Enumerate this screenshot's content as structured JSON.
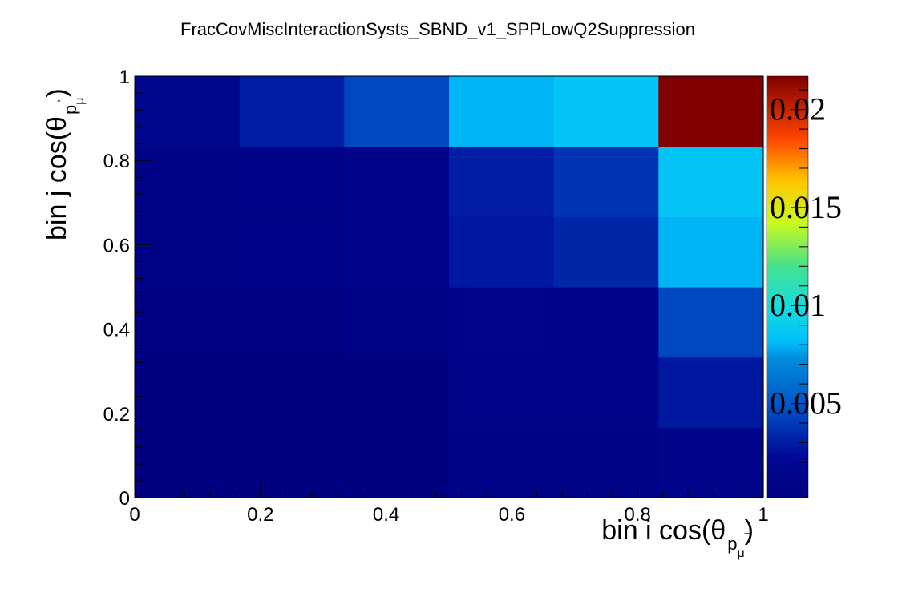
{
  "chart_data": {
    "type": "heatmap",
    "title": "FracCovMiscInteractionSysts_SBND_v1_SPPLowQ2Suppression",
    "xlabel": "bin i cos(θ",
    "ylabel": "bin j cos(θ",
    "label_subscript": "p",
    "label_subsubscript": "μ",
    "x_bins": 6,
    "y_bins": 6,
    "xlim": [
      0,
      1
    ],
    "ylim": [
      0,
      1
    ],
    "x_tick_labels": [
      "0",
      "0.2",
      "0.4",
      "0.6",
      "0.8",
      "1"
    ],
    "y_tick_labels": [
      "0",
      "0.2",
      "0.4",
      "0.6",
      "0.8",
      "1"
    ],
    "colorbar": {
      "min": 0.0002,
      "max": 0.0217,
      "tick_values": [
        0.005,
        0.01,
        0.015,
        0.02
      ],
      "tick_labels": [
        "0.005",
        "0.01",
        "0.015",
        "0.02"
      ]
    },
    "values_rows_bottom_to_top": [
      [
        0.0003,
        0.0003,
        0.0003,
        0.0008,
        0.0008,
        0.0012
      ],
      [
        0.0003,
        0.0003,
        0.0003,
        0.001,
        0.001,
        0.0028
      ],
      [
        0.0004,
        0.0004,
        0.0006,
        0.0014,
        0.0013,
        0.0045
      ],
      [
        0.0008,
        0.0009,
        0.0012,
        0.0028,
        0.0033,
        0.008
      ],
      [
        0.0008,
        0.0009,
        0.0012,
        0.003,
        0.0038,
        0.0085
      ],
      [
        0.0016,
        0.003,
        0.0045,
        0.008,
        0.0085,
        0.0217
      ]
    ]
  }
}
